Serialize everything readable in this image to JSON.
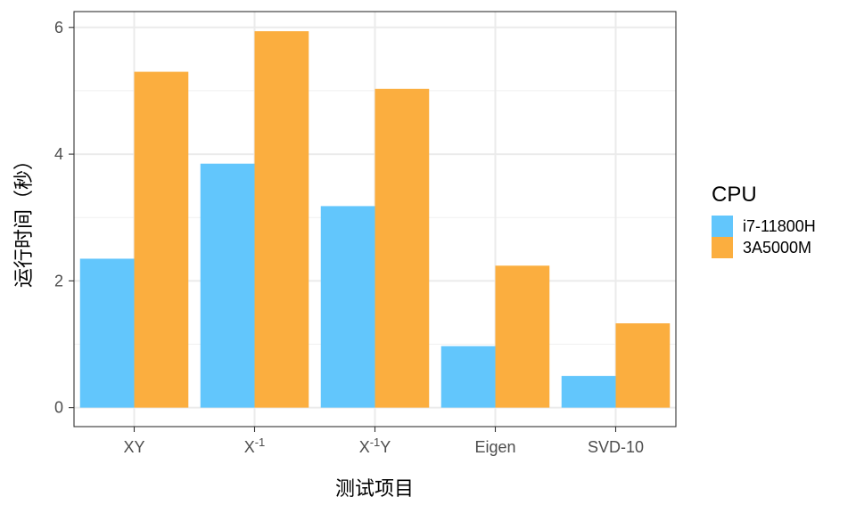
{
  "chart_data": {
    "type": "bar",
    "categories": [
      "XY",
      "X^{-1}",
      "X^{-1}Y",
      "Eigen",
      "SVD-10"
    ],
    "series": [
      {
        "name": "i7-11800H",
        "color": "#62C6FC",
        "values": [
          2.35,
          3.85,
          3.18,
          0.97,
          0.5
        ]
      },
      {
        "name": "3A5000M",
        "color": "#FBAE3F",
        "values": [
          5.3,
          5.94,
          5.03,
          2.24,
          1.33
        ]
      }
    ],
    "xlabel": "测试项目",
    "ylabel": "运行时间（秒）",
    "ylim": [
      -0.3,
      6.25
    ],
    "yticks": [
      0,
      2,
      4,
      6
    ],
    "legend_title": "CPU",
    "legend_position": "right",
    "grid": true,
    "theme": "bw"
  }
}
